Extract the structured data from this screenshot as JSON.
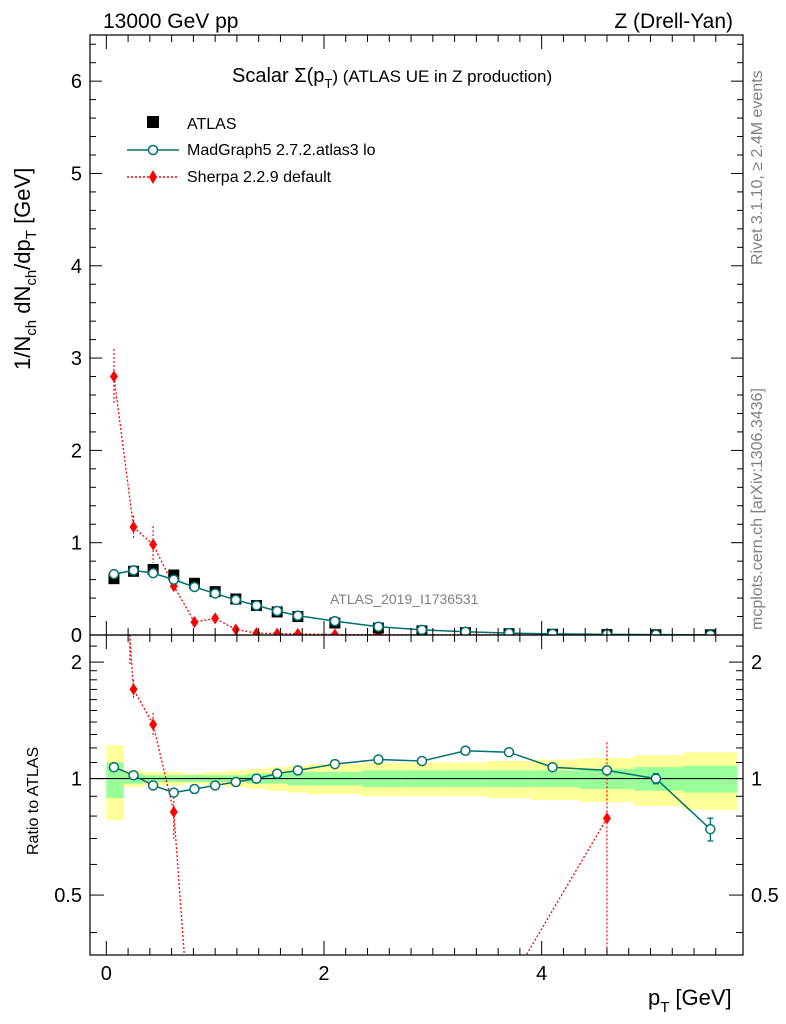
{
  "header": {
    "left": "13000 GeV pp",
    "right": "Z (Drell-Yan)"
  },
  "side_labels": {
    "rivet": "Rivet 3.1.10, ≥ 2.4M events",
    "mcplots": "mcplots.cern.ch [arXiv:1306.3436]"
  },
  "colors": {
    "data": "#000000",
    "madgraph": "#007070",
    "sherpa": "#ff0000",
    "band_inner": "#99ff99",
    "band_outer": "#ffff99"
  },
  "chart_data": {
    "type": "line",
    "title": "Scalar Σ(p_T) (ATLAS UE in Z production)",
    "title_prefix": "Scalar Σ(p",
    "title_sub": "T",
    "title_suffix": ") (ATLAS UE in Z production)",
    "watermark": "ATLAS_2019_I1736531",
    "xlabel": "p_T [GeV]",
    "xlabel_main": "p",
    "xlabel_sub": "T",
    "xlabel_unit": "[GeV]",
    "ylabel": "1/N_ch dN_ch/dp_T [GeV]",
    "ylabel_parts": [
      "1/N",
      "ch",
      " dN",
      "ch",
      "/dp",
      "T",
      " [GeV]"
    ],
    "ratio_ylabel": "Ratio to ATLAS",
    "xlim": [
      -0.15,
      5.85
    ],
    "ylim": [
      0,
      6.5
    ],
    "ratio_ylim": [
      0.35,
      2.35
    ],
    "x_ticks": [
      "0",
      "2",
      "4"
    ],
    "y_ticks": [
      "0",
      "1",
      "2",
      "3",
      "4",
      "5",
      "6"
    ],
    "ratio_ticks": [
      "0.5",
      "1",
      "2"
    ],
    "legend": [
      "ATLAS",
      "MadGraph5 2.7.2.atlas3 lo",
      "Sherpa 2.2.9 default"
    ],
    "series": [
      {
        "name": "ATLAS",
        "x": [
          0.07,
          0.25,
          0.43,
          0.62,
          0.81,
          1.0,
          1.19,
          1.38,
          1.57,
          1.76,
          2.1,
          2.5,
          2.9,
          3.3,
          3.7,
          4.1,
          4.6,
          5.05,
          5.55
        ],
        "values": [
          0.61,
          0.69,
          0.71,
          0.65,
          0.56,
          0.47,
          0.39,
          0.32,
          0.25,
          0.2,
          0.13,
          0.075,
          0.045,
          0.025,
          0.014,
          0.008,
          0.005,
          0.003,
          0.002
        ]
      },
      {
        "name": "MadGraph5 2.7.2.atlas3 lo",
        "x": [
          0.07,
          0.25,
          0.43,
          0.62,
          0.81,
          1.0,
          1.19,
          1.38,
          1.57,
          1.76,
          2.1,
          2.5,
          2.9,
          3.3,
          3.7,
          4.1,
          4.6,
          5.05,
          5.55
        ],
        "values": [
          0.66,
          0.7,
          0.67,
          0.6,
          0.52,
          0.45,
          0.38,
          0.32,
          0.26,
          0.21,
          0.15,
          0.09,
          0.055,
          0.035,
          0.02,
          0.012,
          0.007,
          0.004,
          0.002
        ],
        "ratio": [
          1.07,
          1.02,
          0.96,
          0.92,
          0.94,
          0.96,
          0.98,
          1.0,
          1.03,
          1.05,
          1.09,
          1.12,
          1.11,
          1.18,
          1.17,
          1.07,
          1.05,
          1.0,
          0.74
        ],
        "ratio_err": [
          0,
          0,
          0,
          0,
          0,
          0,
          0,
          0,
          0,
          0,
          0,
          0,
          0,
          0,
          0.015,
          0.015,
          0.015,
          0.03,
          0.05
        ]
      },
      {
        "name": "Sherpa 2.2.9 default",
        "x": [
          0.07,
          0.25,
          0.43,
          0.62,
          0.81,
          1.0,
          1.19,
          1.38,
          1.57,
          1.76,
          2.1,
          2.5,
          2.9,
          3.3,
          3.7,
          4.1,
          4.6,
          5.05,
          5.55
        ],
        "values": [
          2.8,
          1.17,
          0.98,
          0.53,
          0.14,
          0.18,
          0.06,
          0.02,
          0.015,
          0.012,
          0.005,
          0.003,
          0.002,
          0.001,
          0.001,
          0.001,
          0.004,
          0.001,
          0.001
        ],
        "ratio_points": [
          {
            "x": 0.25,
            "value": 1.7,
            "err": 0.1
          },
          {
            "x": 0.43,
            "value": 1.38,
            "err": 0.1
          },
          {
            "x": 0.62,
            "value": 0.82,
            "err": 0.12
          },
          {
            "x": 4.6,
            "value": 0.79,
            "err": 0.45
          }
        ]
      }
    ],
    "bands": {
      "edges": [
        0,
        0.16,
        0.34,
        0.53,
        0.72,
        0.9,
        1.1,
        1.29,
        1.48,
        1.67,
        1.85,
        2.35,
        2.7,
        3.1,
        3.5,
        3.9,
        4.35,
        4.85,
        5.3,
        5.8
      ],
      "inner_lo": [
        0.89,
        0.97,
        0.98,
        0.98,
        0.98,
        0.98,
        0.98,
        0.97,
        0.97,
        0.96,
        0.96,
        0.95,
        0.95,
        0.95,
        0.95,
        0.95,
        0.94,
        0.93,
        0.92
      ],
      "inner_hi": [
        1.1,
        1.03,
        1.02,
        1.02,
        1.02,
        1.02,
        1.02,
        1.03,
        1.03,
        1.04,
        1.04,
        1.05,
        1.05,
        1.05,
        1.05,
        1.05,
        1.06,
        1.07,
        1.08
      ],
      "outer_lo": [
        0.78,
        0.95,
        0.96,
        0.96,
        0.97,
        0.96,
        0.95,
        0.94,
        0.93,
        0.92,
        0.91,
        0.9,
        0.9,
        0.9,
        0.89,
        0.88,
        0.87,
        0.85,
        0.83
      ],
      "outer_hi": [
        1.22,
        1.05,
        1.04,
        1.04,
        1.03,
        1.04,
        1.05,
        1.06,
        1.07,
        1.08,
        1.09,
        1.1,
        1.1,
        1.1,
        1.11,
        1.12,
        1.13,
        1.15,
        1.17
      ]
    }
  }
}
